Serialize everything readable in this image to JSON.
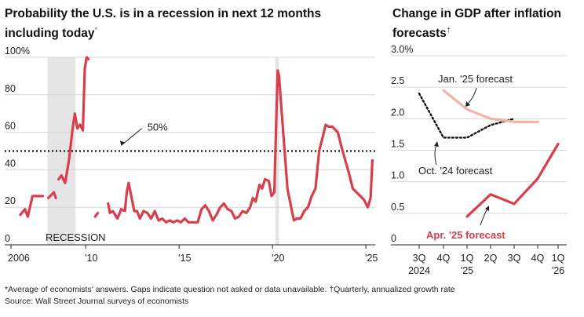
{
  "colors": {
    "red": "#d63f4b",
    "salmon": "#f4b3a2",
    "dotted": "#111111",
    "grid": "#d6d6d6",
    "recession": "#e5e5e5"
  },
  "footnotes": {
    "line1": "*Average of economists' answers. Gaps indicate question not asked or data unavailable.   †Quarterly, annualized growth rate",
    "line2": "Source: Wall Street Journal surveys of economists"
  },
  "chart_data": [
    {
      "type": "line",
      "title": "Probability the U.S. is in a recession in next 12 months including today",
      "title_mark": "*",
      "ylim": [
        0,
        100
      ],
      "y_ticks": [
        "100%",
        "80",
        "60",
        "40",
        "20",
        "0"
      ],
      "x_ticks": [
        "2006",
        "'10",
        "'15",
        "'20",
        "'25"
      ],
      "xlim": [
        2006,
        2025.5
      ],
      "threshold": {
        "value": 50,
        "label": "50%"
      },
      "recession_label": "RECESSION",
      "recession_bands": [
        [
          2007.95,
          2009.45
        ],
        [
          2020.15,
          2020.35
        ]
      ],
      "series": [
        {
          "segments": [
            [
              [
                2006.5,
                16
              ],
              [
                2006.75,
                19
              ],
              [
                2006.9,
                15
              ],
              [
                2007.15,
                26
              ],
              [
                2007.45,
                26
              ],
              [
                2007.7,
                26
              ]
            ],
            [
              [
                2008.0,
                25
              ],
              [
                2008.3,
                28
              ],
              [
                2008.4,
                25
              ]
            ],
            [
              [
                2008.55,
                35
              ],
              [
                2008.7,
                37
              ],
              [
                2008.9,
                33
              ],
              [
                2009.1,
                45
              ],
              [
                2009.3,
                62
              ],
              [
                2009.42,
                70
              ],
              [
                2009.55,
                62
              ],
              [
                2009.7,
                64
              ],
              [
                2009.85,
                61
              ],
              [
                2009.95,
                94
              ],
              [
                2010.05,
                100
              ],
              [
                2010.15,
                99
              ]
            ],
            [
              [
                2010.5,
                15
              ],
              [
                2010.65,
                17
              ]
            ],
            [
              [
                2011.2,
                22
              ],
              [
                2011.3,
                17
              ],
              [
                2011.45,
                18
              ],
              [
                2011.7,
                14
              ],
              [
                2011.9,
                19
              ],
              [
                2012.1,
                18
              ],
              [
                2012.2,
                28
              ],
              [
                2012.3,
                33
              ],
              [
                2012.4,
                28
              ],
              [
                2012.6,
                18
              ],
              [
                2012.75,
                18
              ],
              [
                2012.9,
                14
              ],
              [
                2013.1,
                18
              ],
              [
                2013.3,
                17
              ],
              [
                2013.5,
                14
              ],
              [
                2013.7,
                18
              ],
              [
                2013.9,
                13
              ],
              [
                2014.1,
                14
              ],
              [
                2014.3,
                12
              ],
              [
                2014.5,
                13
              ],
              [
                2014.7,
                12
              ],
              [
                2014.9,
                13
              ],
              [
                2015.1,
                12
              ],
              [
                2015.3,
                14
              ],
              [
                2015.5,
                12
              ],
              [
                2015.7,
                12
              ],
              [
                2015.9,
                12
              ],
              [
                2016.0,
                12
              ],
              [
                2016.2,
                19
              ],
              [
                2016.4,
                21
              ],
              [
                2016.6,
                18
              ],
              [
                2016.8,
                13
              ],
              [
                2017.0,
                16
              ],
              [
                2017.2,
                20
              ],
              [
                2017.4,
                22
              ],
              [
                2017.6,
                19
              ],
              [
                2017.8,
                18
              ],
              [
                2018.0,
                14
              ],
              [
                2018.2,
                15
              ],
              [
                2018.4,
                18
              ],
              [
                2018.6,
                17
              ],
              [
                2018.8,
                20
              ],
              [
                2018.95,
                25
              ],
              [
                2019.1,
                23
              ],
              [
                2019.3,
                32
              ],
              [
                2019.45,
                30
              ],
              [
                2019.6,
                35
              ],
              [
                2019.8,
                34
              ],
              [
                2019.95,
                26
              ],
              [
                2020.1,
                28
              ],
              [
                2020.2,
                66
              ],
              [
                2020.28,
                93
              ],
              [
                2020.35,
                90
              ],
              [
                2020.5,
                70
              ],
              [
                2020.65,
                50
              ],
              [
                2020.8,
                30
              ],
              [
                2021.0,
                20
              ],
              [
                2021.15,
                13
              ],
              [
                2021.3,
                14
              ],
              [
                2021.5,
                14
              ],
              [
                2021.7,
                18
              ],
              [
                2021.9,
                20
              ],
              [
                2022.1,
                26
              ],
              [
                2022.3,
                30
              ],
              [
                2022.5,
                50
              ],
              [
                2022.7,
                58
              ],
              [
                2022.85,
                64
              ],
              [
                2023.0,
                63
              ],
              [
                2023.2,
                63
              ],
              [
                2023.5,
                60
              ],
              [
                2023.7,
                52
              ],
              [
                2023.9,
                45
              ],
              [
                2024.1,
                38
              ],
              [
                2024.3,
                30
              ],
              [
                2024.5,
                28
              ],
              [
                2024.7,
                26
              ],
              [
                2024.9,
                24
              ],
              [
                2025.1,
                20
              ],
              [
                2025.25,
                25
              ],
              [
                2025.35,
                45
              ]
            ]
          ]
        }
      ]
    },
    {
      "type": "line",
      "title": "Change in GDP after inflation forecasts",
      "title_mark": "†",
      "ylim": [
        0,
        3.0
      ],
      "y_ticks": [
        "3.0%",
        "2.5",
        "2.0",
        "1.5",
        "1.0",
        "0.5",
        "0"
      ],
      "categories": [
        "3Q 2024",
        "4Q",
        "1Q '25",
        "2Q",
        "3Q",
        "4Q",
        "1Q '26"
      ],
      "series": [
        {
          "name": "Oct. '24 forecast",
          "style": "dotted",
          "values": [
            2.4,
            1.7,
            1.7,
            1.9,
            2.0,
            null,
            null
          ]
        },
        {
          "name": "Jan. '25 forecast",
          "style": "salmon",
          "values": [
            null,
            2.45,
            2.15,
            2.0,
            1.95,
            1.95,
            null
          ]
        },
        {
          "name": "Apr. '25 forecast",
          "style": "red",
          "values": [
            null,
            null,
            0.45,
            0.8,
            0.65,
            1.05,
            1.6
          ]
        }
      ]
    }
  ]
}
